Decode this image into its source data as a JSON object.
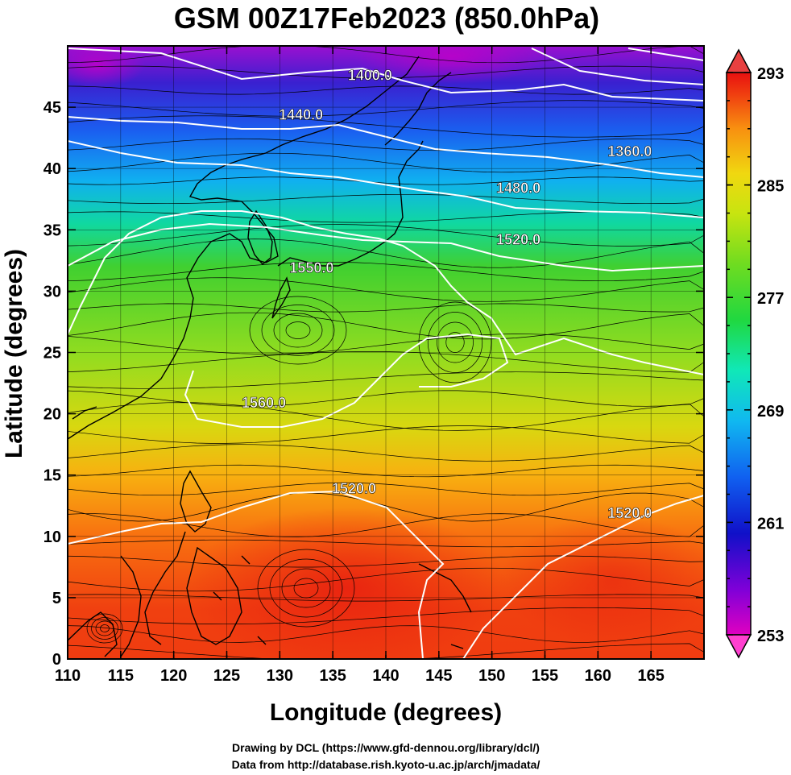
{
  "title": "GSM 00Z17Feb2023 (850.0hPa)",
  "axes": {
    "xlabel": "Longitude (degrees)",
    "ylabel": "Latitude  (degrees)",
    "xticks": [
      "110",
      "115",
      "120",
      "125",
      "130",
      "135",
      "140",
      "145",
      "150",
      "155",
      "160",
      "165"
    ],
    "yticks": [
      "0",
      "5",
      "10",
      "15",
      "20",
      "25",
      "30",
      "35",
      "40",
      "45"
    ],
    "xlim": [
      110,
      170
    ],
    "ylim": [
      0,
      50
    ]
  },
  "contours": {
    "unit": "m",
    "labels": [
      {
        "text": "1400.0",
        "lon": 138.5,
        "lat": 47.2
      },
      {
        "text": "1440.0",
        "lon": 132.0,
        "lat": 44.0
      },
      {
        "text": "1360.0",
        "lon": 163.0,
        "lat": 41.0
      },
      {
        "text": "1480.0",
        "lon": 152.5,
        "lat": 38.0
      },
      {
        "text": "1520.0",
        "lon": 152.5,
        "lat": 33.8
      },
      {
        "text": "1550.0",
        "lon": 133.0,
        "lat": 31.5
      },
      {
        "text": "1560.0",
        "lon": 128.5,
        "lat": 20.5
      },
      {
        "text": "1520.0",
        "lon": 137.0,
        "lat": 13.5
      },
      {
        "text": "1520.0",
        "lon": 163.0,
        "lat": 11.5
      }
    ]
  },
  "colorbar": {
    "labels": [
      "293",
      "285",
      "277",
      "269",
      "261",
      "253"
    ],
    "min": 253,
    "max": 293,
    "stops": [
      "#e000c0",
      "#8000d8",
      "#1010c8",
      "#1060f0",
      "#10b8f0",
      "#10e8b8",
      "#20d840",
      "#70dc20",
      "#c8e410",
      "#f0d810",
      "#f89010",
      "#f04010",
      "#e81010"
    ]
  },
  "credits": {
    "line1": "Drawing by DCL (https://www.gfd-dennou.org/library/dcl/)",
    "line2": "Data from http://database.rish.kyoto-u.ac.jp/arch/jmadata/"
  },
  "chart_data": {
    "type": "heatmap",
    "title": "GSM 00Z17Feb2023 (850.0hPa)",
    "xlabel": "Longitude (degrees)",
    "ylabel": "Latitude  (degrees)",
    "xlim": [
      110,
      170
    ],
    "ylim": [
      0,
      50
    ],
    "colorbar_range": [
      253,
      293
    ],
    "contour_levels_labeled": [
      1360.0,
      1400.0,
      1440.0,
      1480.0,
      1520.0,
      1550.0,
      1560.0
    ]
  }
}
